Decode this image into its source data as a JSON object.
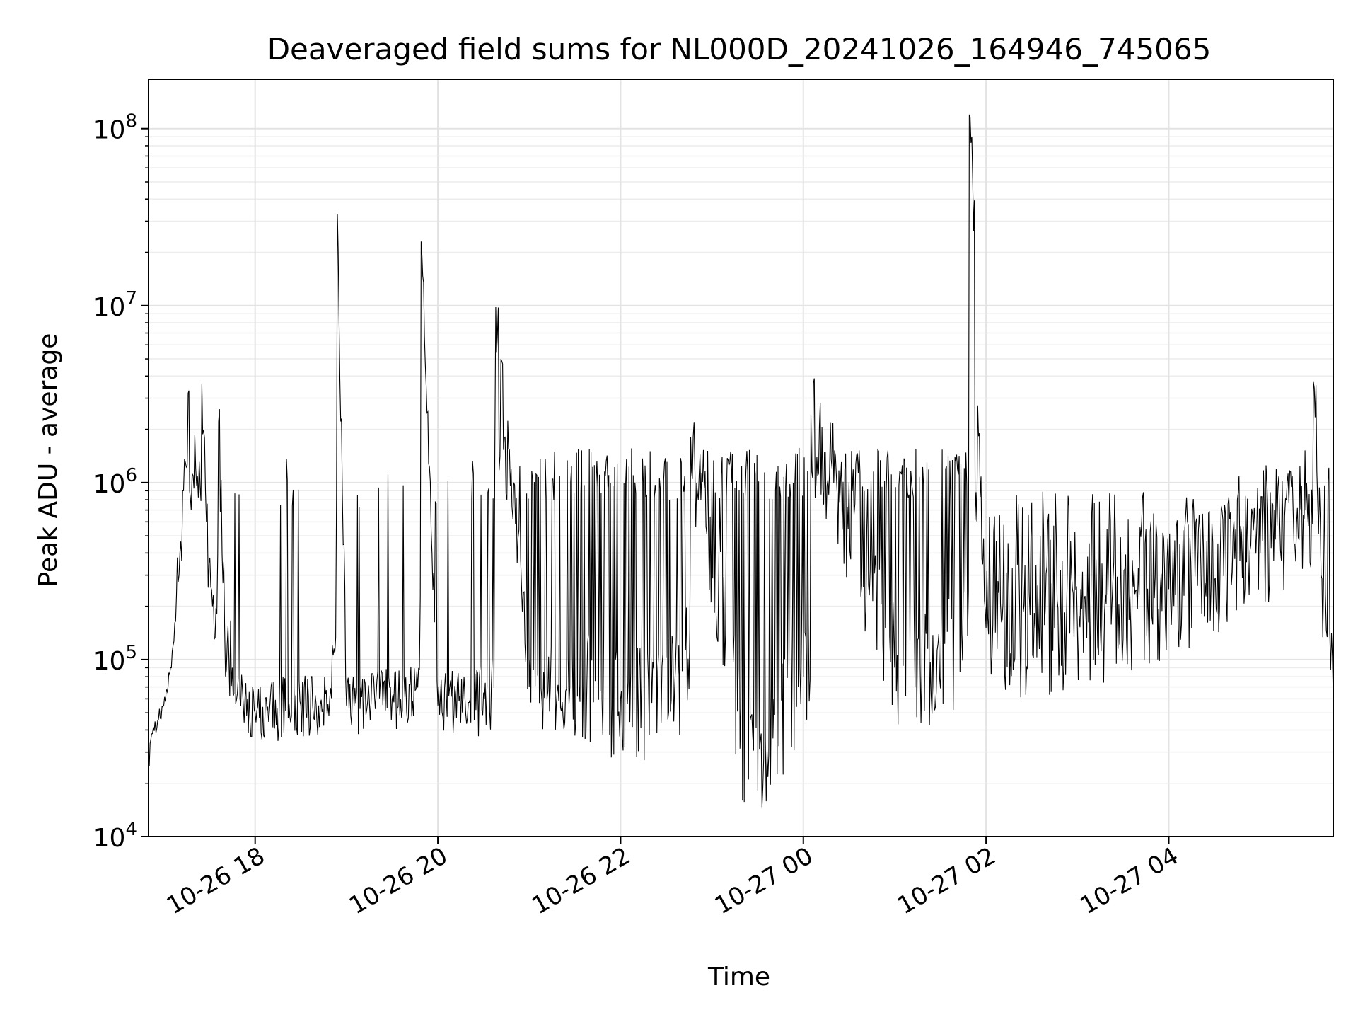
{
  "chart_data": {
    "type": "line",
    "title": "Deaveraged field sums for NL000D_20241026_164946_745065",
    "xlabel": "Time",
    "ylabel": "Peak ADU - average",
    "yscale": "log",
    "xlim": [
      "2024-10-26 16:50",
      "2024-10-27 05:48"
    ],
    "ylim": [
      10000,
      190000000
    ],
    "grid": "major and minor, light gray",
    "line_color": "#000000",
    "x_ticks": [
      {
        "x": "2024-10-26 18:00",
        "label": "10-26 18"
      },
      {
        "x": "2024-10-26 20:00",
        "label": "10-26 20"
      },
      {
        "x": "2024-10-26 22:00",
        "label": "10-26 22"
      },
      {
        "x": "2024-10-27 00:00",
        "label": "10-27 00"
      },
      {
        "x": "2024-10-27 02:00",
        "label": "10-27 02"
      },
      {
        "x": "2024-10-27 04:00",
        "label": "10-27 04"
      }
    ],
    "y_ticks": [
      {
        "value": 10000,
        "base": "10",
        "exp": "4"
      },
      {
        "value": 100000,
        "base": "10",
        "exp": "5"
      },
      {
        "value": 1000000,
        "base": "10",
        "exp": "6"
      },
      {
        "value": 10000000,
        "base": "10",
        "exp": "7"
      },
      {
        "value": 100000000,
        "base": "10",
        "exp": "8"
      }
    ],
    "series": [
      {
        "points": [
          [
            "2024-10-26 16:50",
            25000
          ],
          [
            "2024-10-26 16:52",
            38000
          ],
          [
            "2024-10-26 16:56",
            45000
          ],
          [
            "2024-10-26 17:00",
            55000
          ],
          [
            "2024-10-26 17:05",
            90000
          ],
          [
            "2024-10-26 17:10",
            300000
          ],
          [
            "2024-10-26 17:13",
            900000
          ],
          [
            "2024-10-26 17:16",
            3200000
          ],
          [
            "2024-10-26 17:18",
            700000
          ],
          [
            "2024-10-26 17:21",
            1200000
          ],
          [
            "2024-10-26 17:25",
            3600000
          ],
          [
            "2024-10-26 17:28",
            600000
          ],
          [
            "2024-10-26 17:32",
            200000
          ],
          [
            "2024-10-26 17:36",
            2200000
          ],
          [
            "2024-10-26 17:40",
            150000
          ],
          [
            "2024-10-26 17:45",
            90000
          ],
          [
            "2024-10-26 17:50",
            60000
          ],
          [
            "2024-10-26 18:00",
            50000
          ],
          [
            "2024-10-26 18:30",
            55000
          ],
          [
            "2024-10-26 18:54",
            33000000
          ],
          [
            "2024-10-26 19:00",
            55000
          ],
          [
            "2024-10-26 19:30",
            60000
          ],
          [
            "2024-10-26 19:49",
            23000000
          ],
          [
            "2024-10-26 20:00",
            55000
          ],
          [
            "2024-10-26 20:30",
            65000
          ],
          [
            "2024-10-26 20:38",
            9800000
          ],
          [
            "2024-10-26 21:00",
            70000
          ],
          [
            "2024-10-26 22:00",
            60000
          ],
          [
            "2024-10-26 22:46",
            1800000
          ],
          [
            "2024-10-26 23:24",
            21000
          ],
          [
            "2024-10-27 00:00",
            80000
          ],
          [
            "2024-10-27 00:05",
            2400000
          ],
          [
            "2024-10-27 01:00",
            90000
          ],
          [
            "2024-10-27 01:49",
            120000000
          ],
          [
            "2024-10-27 02:00",
            150000
          ],
          [
            "2024-10-27 03:00",
            150000
          ],
          [
            "2024-10-27 04:00",
            250000
          ],
          [
            "2024-10-27 05:00",
            400000
          ],
          [
            "2024-10-27 05:30",
            700000
          ],
          [
            "2024-10-27 05:35",
            3700000
          ],
          [
            "2024-10-27 05:40",
            300000
          ],
          [
            "2024-10-27 05:48",
            60000
          ]
        ]
      }
    ]
  }
}
